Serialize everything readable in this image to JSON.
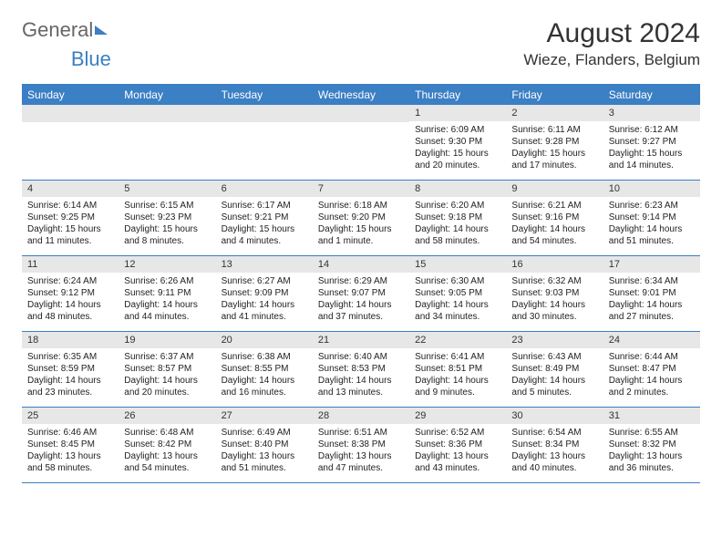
{
  "logo": {
    "text1": "General",
    "text2": "Blue"
  },
  "title": "August 2024",
  "location": "Wieze, Flanders, Belgium",
  "colors": {
    "brand": "#3b7fc4",
    "dayhead_bg": "#3b7fc4",
    "dayhead_text": "#ffffff",
    "daynum_bg": "#e7e7e7",
    "text": "#222222",
    "background": "#ffffff"
  },
  "day_names": [
    "Sunday",
    "Monday",
    "Tuesday",
    "Wednesday",
    "Thursday",
    "Friday",
    "Saturday"
  ],
  "weeks": [
    [
      null,
      null,
      null,
      null,
      {
        "n": "1",
        "sr": "Sunrise: 6:09 AM",
        "ss": "Sunset: 9:30 PM",
        "d1": "Daylight: 15 hours",
        "d2": "and 20 minutes."
      },
      {
        "n": "2",
        "sr": "Sunrise: 6:11 AM",
        "ss": "Sunset: 9:28 PM",
        "d1": "Daylight: 15 hours",
        "d2": "and 17 minutes."
      },
      {
        "n": "3",
        "sr": "Sunrise: 6:12 AM",
        "ss": "Sunset: 9:27 PM",
        "d1": "Daylight: 15 hours",
        "d2": "and 14 minutes."
      }
    ],
    [
      {
        "n": "4",
        "sr": "Sunrise: 6:14 AM",
        "ss": "Sunset: 9:25 PM",
        "d1": "Daylight: 15 hours",
        "d2": "and 11 minutes."
      },
      {
        "n": "5",
        "sr": "Sunrise: 6:15 AM",
        "ss": "Sunset: 9:23 PM",
        "d1": "Daylight: 15 hours",
        "d2": "and 8 minutes."
      },
      {
        "n": "6",
        "sr": "Sunrise: 6:17 AM",
        "ss": "Sunset: 9:21 PM",
        "d1": "Daylight: 15 hours",
        "d2": "and 4 minutes."
      },
      {
        "n": "7",
        "sr": "Sunrise: 6:18 AM",
        "ss": "Sunset: 9:20 PM",
        "d1": "Daylight: 15 hours",
        "d2": "and 1 minute."
      },
      {
        "n": "8",
        "sr": "Sunrise: 6:20 AM",
        "ss": "Sunset: 9:18 PM",
        "d1": "Daylight: 14 hours",
        "d2": "and 58 minutes."
      },
      {
        "n": "9",
        "sr": "Sunrise: 6:21 AM",
        "ss": "Sunset: 9:16 PM",
        "d1": "Daylight: 14 hours",
        "d2": "and 54 minutes."
      },
      {
        "n": "10",
        "sr": "Sunrise: 6:23 AM",
        "ss": "Sunset: 9:14 PM",
        "d1": "Daylight: 14 hours",
        "d2": "and 51 minutes."
      }
    ],
    [
      {
        "n": "11",
        "sr": "Sunrise: 6:24 AM",
        "ss": "Sunset: 9:12 PM",
        "d1": "Daylight: 14 hours",
        "d2": "and 48 minutes."
      },
      {
        "n": "12",
        "sr": "Sunrise: 6:26 AM",
        "ss": "Sunset: 9:11 PM",
        "d1": "Daylight: 14 hours",
        "d2": "and 44 minutes."
      },
      {
        "n": "13",
        "sr": "Sunrise: 6:27 AM",
        "ss": "Sunset: 9:09 PM",
        "d1": "Daylight: 14 hours",
        "d2": "and 41 minutes."
      },
      {
        "n": "14",
        "sr": "Sunrise: 6:29 AM",
        "ss": "Sunset: 9:07 PM",
        "d1": "Daylight: 14 hours",
        "d2": "and 37 minutes."
      },
      {
        "n": "15",
        "sr": "Sunrise: 6:30 AM",
        "ss": "Sunset: 9:05 PM",
        "d1": "Daylight: 14 hours",
        "d2": "and 34 minutes."
      },
      {
        "n": "16",
        "sr": "Sunrise: 6:32 AM",
        "ss": "Sunset: 9:03 PM",
        "d1": "Daylight: 14 hours",
        "d2": "and 30 minutes."
      },
      {
        "n": "17",
        "sr": "Sunrise: 6:34 AM",
        "ss": "Sunset: 9:01 PM",
        "d1": "Daylight: 14 hours",
        "d2": "and 27 minutes."
      }
    ],
    [
      {
        "n": "18",
        "sr": "Sunrise: 6:35 AM",
        "ss": "Sunset: 8:59 PM",
        "d1": "Daylight: 14 hours",
        "d2": "and 23 minutes."
      },
      {
        "n": "19",
        "sr": "Sunrise: 6:37 AM",
        "ss": "Sunset: 8:57 PM",
        "d1": "Daylight: 14 hours",
        "d2": "and 20 minutes."
      },
      {
        "n": "20",
        "sr": "Sunrise: 6:38 AM",
        "ss": "Sunset: 8:55 PM",
        "d1": "Daylight: 14 hours",
        "d2": "and 16 minutes."
      },
      {
        "n": "21",
        "sr": "Sunrise: 6:40 AM",
        "ss": "Sunset: 8:53 PM",
        "d1": "Daylight: 14 hours",
        "d2": "and 13 minutes."
      },
      {
        "n": "22",
        "sr": "Sunrise: 6:41 AM",
        "ss": "Sunset: 8:51 PM",
        "d1": "Daylight: 14 hours",
        "d2": "and 9 minutes."
      },
      {
        "n": "23",
        "sr": "Sunrise: 6:43 AM",
        "ss": "Sunset: 8:49 PM",
        "d1": "Daylight: 14 hours",
        "d2": "and 5 minutes."
      },
      {
        "n": "24",
        "sr": "Sunrise: 6:44 AM",
        "ss": "Sunset: 8:47 PM",
        "d1": "Daylight: 14 hours",
        "d2": "and 2 minutes."
      }
    ],
    [
      {
        "n": "25",
        "sr": "Sunrise: 6:46 AM",
        "ss": "Sunset: 8:45 PM",
        "d1": "Daylight: 13 hours",
        "d2": "and 58 minutes."
      },
      {
        "n": "26",
        "sr": "Sunrise: 6:48 AM",
        "ss": "Sunset: 8:42 PM",
        "d1": "Daylight: 13 hours",
        "d2": "and 54 minutes."
      },
      {
        "n": "27",
        "sr": "Sunrise: 6:49 AM",
        "ss": "Sunset: 8:40 PM",
        "d1": "Daylight: 13 hours",
        "d2": "and 51 minutes."
      },
      {
        "n": "28",
        "sr": "Sunrise: 6:51 AM",
        "ss": "Sunset: 8:38 PM",
        "d1": "Daylight: 13 hours",
        "d2": "and 47 minutes."
      },
      {
        "n": "29",
        "sr": "Sunrise: 6:52 AM",
        "ss": "Sunset: 8:36 PM",
        "d1": "Daylight: 13 hours",
        "d2": "and 43 minutes."
      },
      {
        "n": "30",
        "sr": "Sunrise: 6:54 AM",
        "ss": "Sunset: 8:34 PM",
        "d1": "Daylight: 13 hours",
        "d2": "and 40 minutes."
      },
      {
        "n": "31",
        "sr": "Sunrise: 6:55 AM",
        "ss": "Sunset: 8:32 PM",
        "d1": "Daylight: 13 hours",
        "d2": "and 36 minutes."
      }
    ]
  ]
}
